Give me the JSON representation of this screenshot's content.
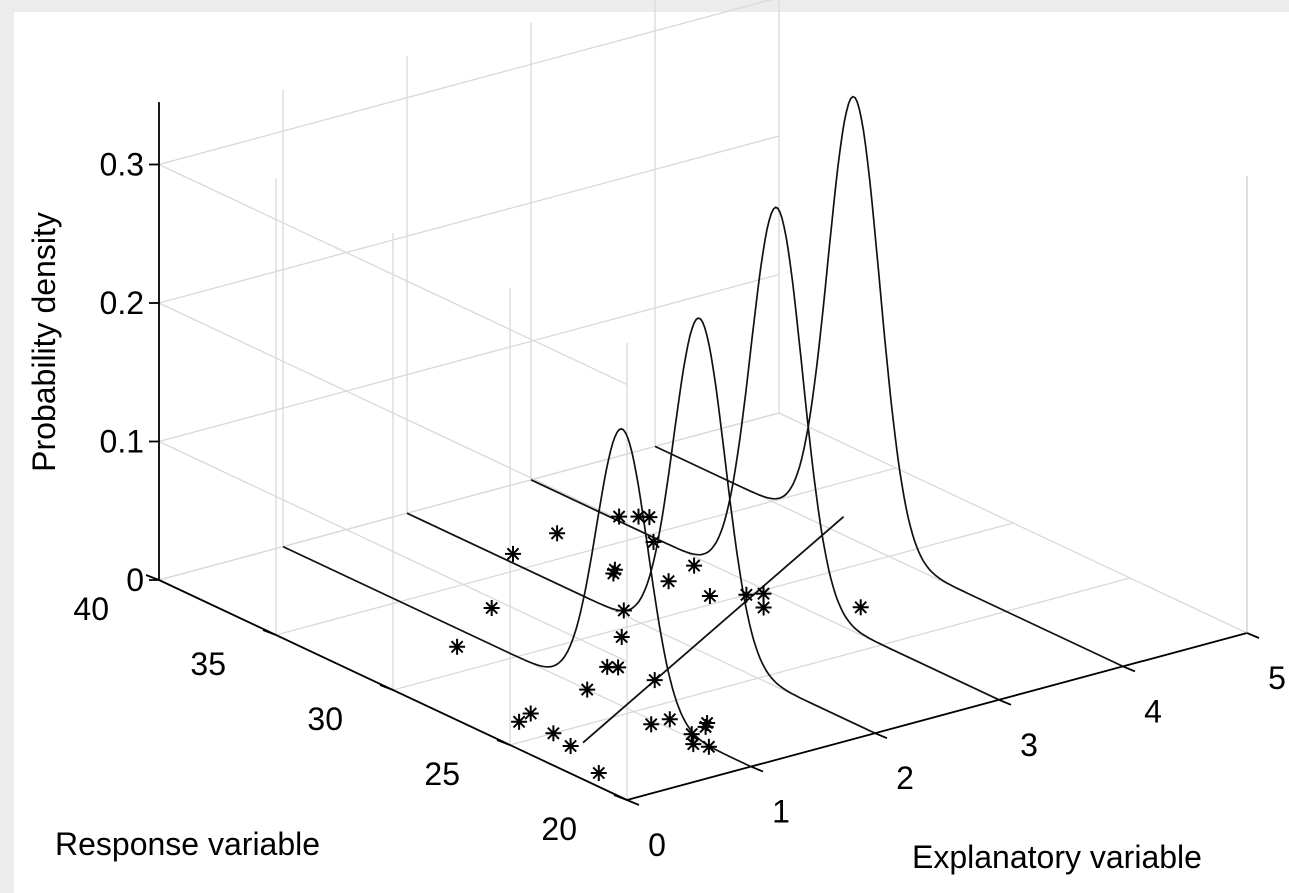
{
  "chart_data": {
    "type": "scatter",
    "subtype": "3d-regression-density",
    "title": "",
    "xlabel": "Explanatory variable",
    "ylabel": "Response variable",
    "zlabel": "Probability density",
    "xlim": [
      0,
      5
    ],
    "ylim": [
      20,
      40
    ],
    "zlim": [
      0,
      0.33
    ],
    "x_ticks": [
      "0",
      "1",
      "2",
      "3",
      "4",
      "5"
    ],
    "y_ticks": [
      "20",
      "25",
      "30",
      "35",
      "40"
    ],
    "z_ticks": [
      "0",
      "0.1",
      "0.2",
      "0.3"
    ],
    "grid": true,
    "marker": "asterisk",
    "regression_line": {
      "x": [
        0.4,
        4.2
      ],
      "y": [
        24.0,
        33.0
      ]
    },
    "density_curves": [
      {
        "x": 1.0,
        "mean": 25.5,
        "sd": 1.1,
        "peak": 0.2
      },
      {
        "x": 2.0,
        "mean": 27.5,
        "sd": 1.1,
        "peak": 0.24
      },
      {
        "x": 3.0,
        "mean": 29.5,
        "sd": 1.1,
        "peak": 0.28
      },
      {
        "x": 4.0,
        "mean": 31.5,
        "sd": 1.1,
        "peak": 0.32
      }
    ],
    "points": [
      {
        "x": 0.15,
        "y": 22.0
      },
      {
        "x": 0.3,
        "y": 24.0
      },
      {
        "x": 0.35,
        "y": 25.0
      },
      {
        "x": 0.45,
        "y": 26.5
      },
      {
        "x": 0.3,
        "y": 26.2
      },
      {
        "x": 0.95,
        "y": 24.0
      },
      {
        "x": 1.1,
        "y": 24.0
      },
      {
        "x": 1.05,
        "y": 22.8
      },
      {
        "x": 1.2,
        "y": 23.0
      },
      {
        "x": 1.25,
        "y": 23.2
      },
      {
        "x": 1.0,
        "y": 21.8
      },
      {
        "x": 0.95,
        "y": 22.2
      },
      {
        "x": 1.0,
        "y": 27.0
      },
      {
        "x": 1.35,
        "y": 28.0
      },
      {
        "x": 1.4,
        "y": 27.8
      },
      {
        "x": 1.45,
        "y": 26.5
      },
      {
        "x": 0.8,
        "y": 31.5
      },
      {
        "x": 1.75,
        "y": 29.5
      },
      {
        "x": 1.4,
        "y": 33.2
      },
      {
        "x": 2.05,
        "y": 31.0
      },
      {
        "x": 2.1,
        "y": 36.0
      },
      {
        "x": 2.55,
        "y": 36.5
      },
      {
        "x": 2.4,
        "y": 33.3
      },
      {
        "x": 2.45,
        "y": 33.5
      },
      {
        "x": 2.6,
        "y": 32.0
      },
      {
        "x": 2.65,
        "y": 30.5
      },
      {
        "x": 2.85,
        "y": 30.0
      },
      {
        "x": 2.8,
        "y": 29.0
      },
      {
        "x": 2.95,
        "y": 29.8
      },
      {
        "x": 3.3,
        "y": 27.5
      },
      {
        "x": 2.9,
        "y": 32.5
      },
      {
        "x": 2.95,
        "y": 34.5
      },
      {
        "x": 3.05,
        "y": 36.5
      },
      {
        "x": 3.15,
        "y": 36.2
      },
      {
        "x": 3.2,
        "y": 36.0
      }
    ]
  }
}
